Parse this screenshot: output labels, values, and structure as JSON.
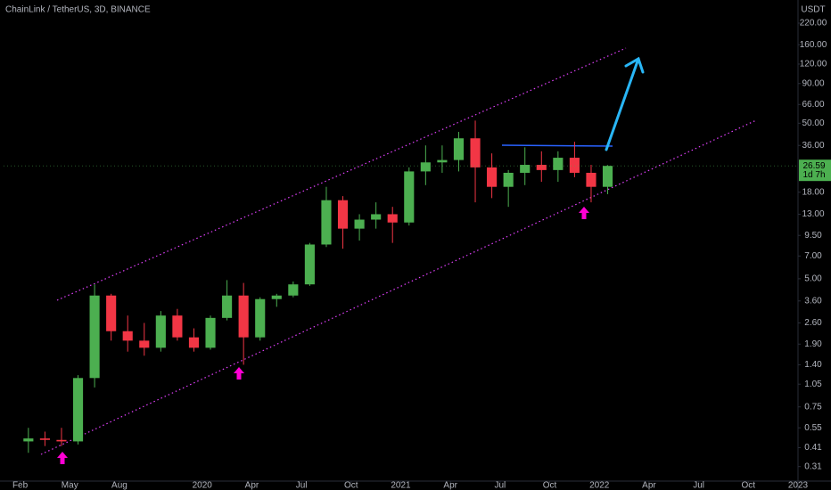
{
  "chart_data": {
    "type": "candlestick",
    "title": "ChainLink / TetherUS, 3D, BINANCE",
    "currency": "USDT",
    "x": [
      "2019-02",
      "2019-03",
      "2019-04",
      "2019-05",
      "2019-06",
      "2019-07",
      "2019-08",
      "2019-09",
      "2019-10",
      "2019-11",
      "2019-12",
      "2020-01",
      "2020-02",
      "2020-03",
      "2020-04",
      "2020-05",
      "2020-06",
      "2020-07",
      "2020-08",
      "2020-09",
      "2020-10",
      "2020-11",
      "2020-12",
      "2021-01",
      "2021-02",
      "2021-03",
      "2021-04",
      "2021-05",
      "2021-06",
      "2021-07",
      "2021-08",
      "2021-09",
      "2021-10",
      "2021-11",
      "2021-12",
      "2022-01"
    ],
    "open": [
      0.45,
      0.47,
      0.46,
      0.45,
      1.15,
      3.9,
      2.3,
      2.0,
      1.8,
      2.9,
      2.1,
      1.8,
      2.8,
      3.9,
      2.1,
      3.7,
      3.9,
      4.6,
      8.3,
      16.0,
      10.5,
      12.0,
      13.0,
      11.5,
      24.5,
      28.0,
      29.0,
      40.0,
      26.0,
      19.5,
      24.0,
      27.0,
      25.0,
      30.0,
      24.0,
      19.5
    ],
    "high": [
      0.55,
      0.52,
      0.55,
      1.2,
      4.6,
      4.0,
      2.9,
      2.6,
      3.1,
      3.2,
      2.4,
      2.9,
      4.9,
      4.7,
      3.8,
      4.0,
      4.8,
      8.5,
      19.5,
      17.0,
      13.0,
      15.5,
      14.5,
      26.0,
      36.0,
      36.0,
      44.0,
      52.0,
      32.0,
      25.0,
      35.0,
      33.0,
      33.0,
      38.0,
      27.0,
      26.9
    ],
    "low": [
      0.38,
      0.42,
      0.42,
      0.43,
      1.0,
      2.0,
      1.7,
      1.6,
      1.7,
      2.0,
      1.7,
      1.75,
      2.7,
      1.4,
      2.0,
      3.3,
      3.8,
      4.5,
      8.0,
      7.8,
      8.8,
      10.5,
      8.5,
      11.0,
      20.0,
      24.0,
      24.5,
      15.5,
      16.5,
      14.5,
      20.0,
      21.0,
      21.0,
      22.5,
      15.5,
      17.5
    ],
    "close": [
      0.47,
      0.46,
      0.45,
      1.15,
      3.9,
      2.3,
      2.0,
      1.8,
      2.9,
      2.1,
      1.8,
      2.8,
      3.9,
      2.1,
      3.7,
      3.9,
      4.6,
      8.3,
      16.0,
      10.5,
      12.0,
      13.0,
      11.5,
      24.5,
      28.0,
      29.0,
      40.0,
      26.0,
      19.5,
      24.0,
      27.0,
      25.0,
      30.0,
      24.0,
      19.5,
      26.59
    ],
    "up_color": "#4caf50",
    "down_color": "#f23645",
    "last_price": 26.59,
    "countdown": "1d 7h",
    "log_scale": true,
    "ylim": [
      0.25,
      310
    ],
    "yticks": [
      0.31,
      0.41,
      0.55,
      0.75,
      1.05,
      {
        "value": 1.4,
        "label": "1.40"
      },
      {
        "value": 1.9,
        "label": "1.90"
      },
      {
        "value": 2.6,
        "label": "2.60"
      },
      {
        "value": 3.6,
        "label": "3.60"
      },
      {
        "value": 5,
        "label": "5.00"
      },
      {
        "value": 7,
        "label": "7.00"
      },
      {
        "value": 9.5,
        "label": "9.50"
      },
      {
        "value": 13,
        "label": "13.00"
      },
      {
        "value": 18,
        "label": "18.00"
      },
      {
        "value": 36,
        "label": "36.00"
      },
      {
        "value": 50,
        "label": "50.00"
      },
      {
        "value": 66,
        "label": "66.00"
      },
      {
        "value": 90,
        "label": "90.00"
      },
      {
        "value": 120,
        "label": "120.00"
      },
      {
        "value": 160,
        "label": "160.00"
      },
      {
        "value": 220,
        "label": "220.00"
      }
    ],
    "xlim": [
      "2019-01",
      "2023-01"
    ],
    "xticks": [
      {
        "value": "2019-02",
        "label": "Feb"
      },
      {
        "value": "2019-05",
        "label": "May"
      },
      {
        "value": "2019-08",
        "label": "Aug"
      },
      {
        "value": "2020-01",
        "label": "2020"
      },
      {
        "value": "2020-04",
        "label": "Apr"
      },
      {
        "value": "2020-07",
        "label": "Jul"
      },
      {
        "value": "2020-10",
        "label": "Oct"
      },
      {
        "value": "2021-01",
        "label": "2021"
      },
      {
        "value": "2021-04",
        "label": "Apr"
      },
      {
        "value": "2021-07",
        "label": "Jul"
      },
      {
        "value": "2021-10",
        "label": "Oct"
      },
      {
        "value": "2022-01",
        "label": "2022"
      },
      {
        "value": "2022-04",
        "label": "Apr"
      },
      {
        "value": "2022-07",
        "label": "Jul"
      },
      {
        "value": "2022-10",
        "label": "Oct"
      },
      {
        "value": "2023-01",
        "label": "2023"
      }
    ],
    "grid": false
  }
}
